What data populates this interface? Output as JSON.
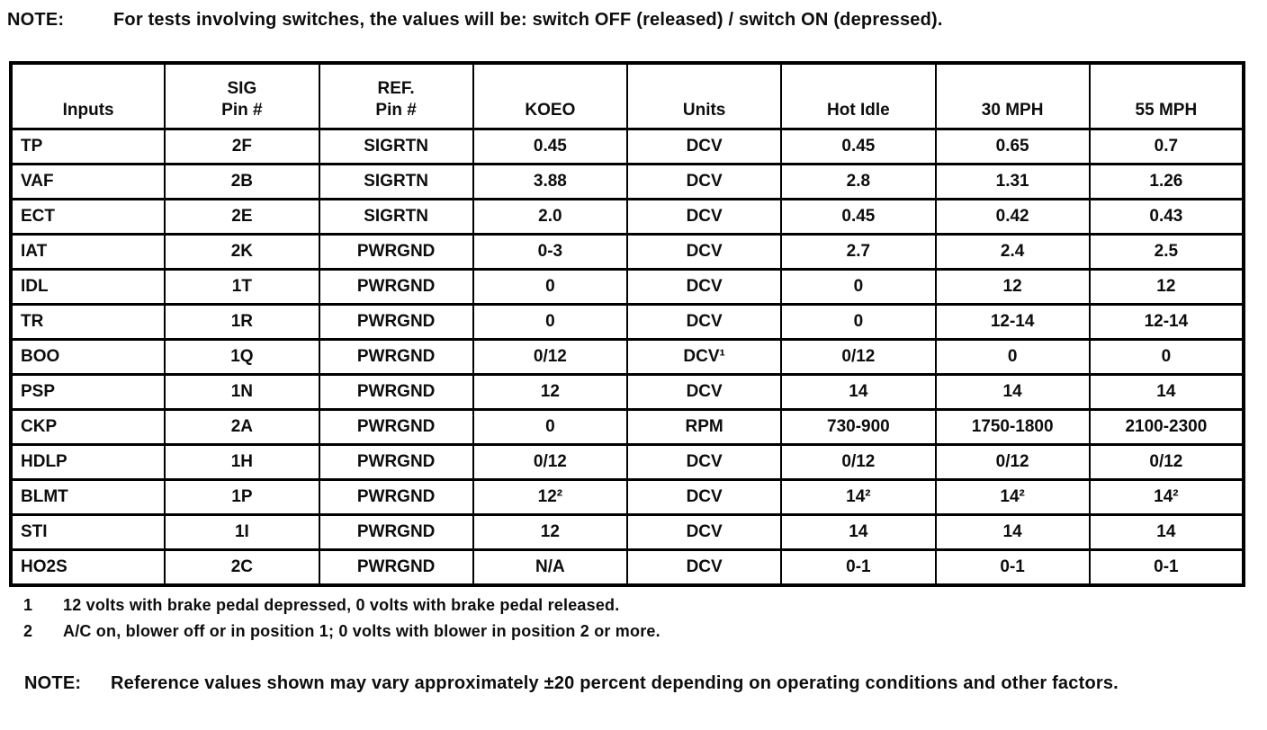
{
  "top_note": {
    "label": "NOTE:",
    "text": "For tests involving switches, the values will be: switch OFF (released) / switch ON (depressed)."
  },
  "table": {
    "header": [
      {
        "line1": "Inputs"
      },
      {
        "line1": "SIG",
        "line2": "Pin #"
      },
      {
        "line1": "REF.",
        "line2": "Pin #"
      },
      {
        "line1": "KOEO"
      },
      {
        "line1": "Units"
      },
      {
        "line1": "Hot Idle"
      },
      {
        "line1": "30 MPH"
      },
      {
        "line1": "55 MPH"
      }
    ],
    "rows": [
      [
        "TP",
        "2F",
        "SIGRTN",
        "0.45",
        "DCV",
        "0.45",
        "0.65",
        "0.7"
      ],
      [
        "VAF",
        "2B",
        "SIGRTN",
        "3.88",
        "DCV",
        "2.8",
        "1.31",
        "1.26"
      ],
      [
        "ECT",
        "2E",
        "SIGRTN",
        "2.0",
        "DCV",
        "0.45",
        "0.42",
        "0.43"
      ],
      [
        "IAT",
        "2K",
        "PWRGND",
        "0-3",
        "DCV",
        "2.7",
        "2.4",
        "2.5"
      ],
      [
        "IDL",
        "1T",
        "PWRGND",
        "0",
        "DCV",
        "0",
        "12",
        "12"
      ],
      [
        "TR",
        "1R",
        "PWRGND",
        "0",
        "DCV",
        "0",
        "12-14",
        "12-14"
      ],
      [
        "BOO",
        "1Q",
        "PWRGND",
        "0/12",
        "DCV¹",
        "0/12",
        "0",
        "0"
      ],
      [
        "PSP",
        "1N",
        "PWRGND",
        "12",
        "DCV",
        "14",
        "14",
        "14"
      ],
      [
        "CKP",
        "2A",
        "PWRGND",
        "0",
        "RPM",
        "730-900",
        "1750-1800",
        "2100-2300"
      ],
      [
        "HDLP",
        "1H",
        "PWRGND",
        "0/12",
        "DCV",
        "0/12",
        "0/12",
        "0/12"
      ],
      [
        "BLMT",
        "1P",
        "PWRGND",
        "12²",
        "DCV",
        "14²",
        "14²",
        "14²"
      ],
      [
        "STI",
        "1I",
        "PWRGND",
        "12",
        "DCV",
        "14",
        "14",
        "14"
      ],
      [
        "HO2S",
        "2C",
        "PWRGND",
        "N/A",
        "DCV",
        "0-1",
        "0-1",
        "0-1"
      ]
    ]
  },
  "footnotes": [
    {
      "num": "1",
      "text": "12 volts with brake pedal depressed, 0 volts with brake pedal released."
    },
    {
      "num": "2",
      "text": "A/C on, blower off or in position 1; 0 volts with blower in position 2 or more."
    }
  ],
  "bottom_note": {
    "label": "NOTE:",
    "text": "Reference values shown may vary approximately ±20 percent depending on operating conditions and other factors."
  }
}
